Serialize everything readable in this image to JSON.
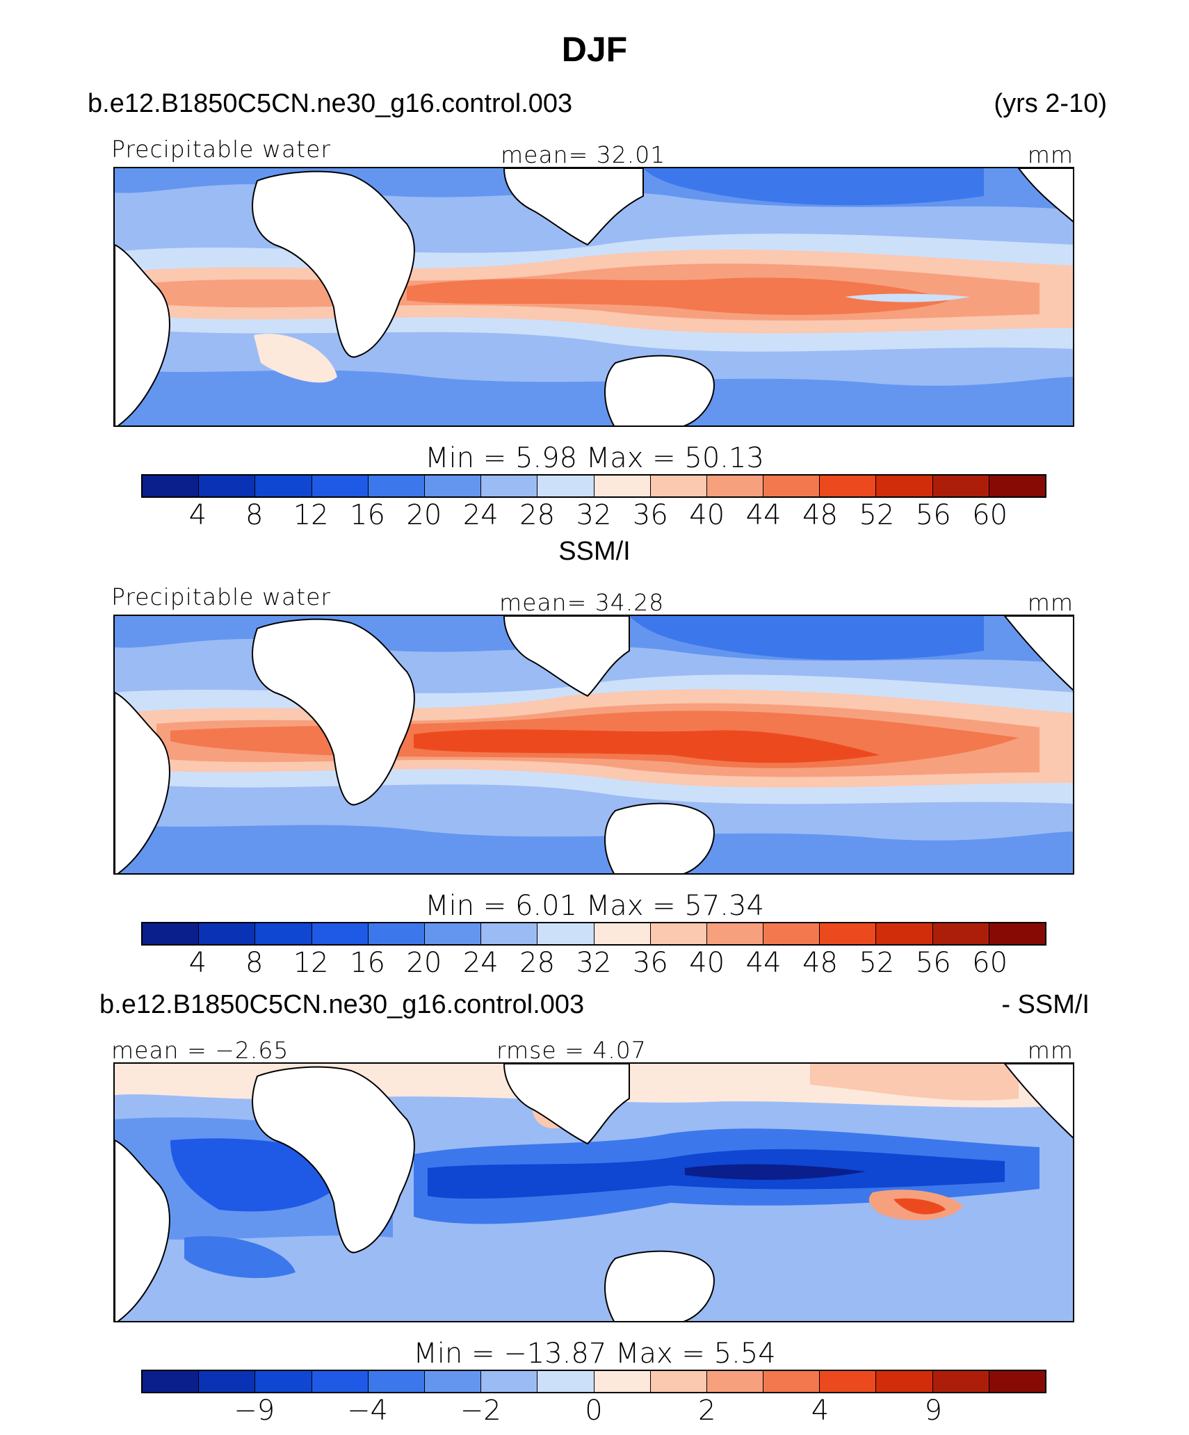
{
  "title": "DJF",
  "palette": [
    "#0a1e8c",
    "#0a32b4",
    "#0f46d2",
    "#1e5ae6",
    "#3c78eb",
    "#6496f0",
    "#9bbbf5",
    "#cde0fa",
    "#fde8dc",
    "#fbc8b0",
    "#f7a07e",
    "#f3784e",
    "#ec4a1e",
    "#d22d0a",
    "#ad1e0a",
    "#870a05"
  ],
  "panels": [
    {
      "header_left": "b.e12.B1850C5CN.ne30_g16.control.003",
      "header_right": "(yrs 2-10)",
      "label_left": "Precipitable water",
      "label_center": "mean=  32.01",
      "label_right": "mm",
      "minmax": "Min =    5.98  Max =   50.13",
      "tick_labels": [
        "4",
        "8",
        "12",
        "16",
        "20",
        "24",
        "28",
        "32",
        "36",
        "40",
        "44",
        "48",
        "52",
        "56",
        "60"
      ],
      "levels": [
        4,
        8,
        12,
        16,
        20,
        24,
        28,
        32,
        36,
        40,
        44,
        48,
        52,
        56,
        60
      ],
      "min": 5.98,
      "max": 50.13,
      "mean": 32.01,
      "units": "mm"
    },
    {
      "header_center": "SSM/I",
      "label_left": "Precipitable water",
      "label_center": "mean=  34.28",
      "label_right": "mm",
      "minmax": "Min =    6.01  Max =   57.34",
      "tick_labels": [
        "4",
        "8",
        "12",
        "16",
        "20",
        "24",
        "28",
        "32",
        "36",
        "40",
        "44",
        "48",
        "52",
        "56",
        "60"
      ],
      "levels": [
        4,
        8,
        12,
        16,
        20,
        24,
        28,
        32,
        36,
        40,
        44,
        48,
        52,
        56,
        60
      ],
      "min": 6.01,
      "max": 57.34,
      "mean": 34.28,
      "units": "mm"
    },
    {
      "header_left": "b.e12.B1850C5CN.ne30_g16.control.003",
      "header_right": "- SSM/I",
      "label_left": "mean =  −2.65",
      "label_center": "rmse =    4.07",
      "label_right": "mm",
      "minmax": "Min = −13.87  Max =    5.54",
      "tick_labels": [
        "−9",
        "−4",
        "−2",
        "0",
        "2",
        "4",
        "9"
      ],
      "tick_boundaries": [
        2,
        4,
        6,
        8,
        10,
        12,
        14
      ],
      "min": -13.87,
      "max": 5.54,
      "mean": -2.65,
      "rmse": 4.07,
      "units": "mm"
    }
  ],
  "chart_data": [
    {
      "type": "heatmap",
      "title": "DJF — b.e12.B1850C5CN.ne30_g16.control.003 (yrs 2-10)",
      "variable": "Precipitable water",
      "units": "mm",
      "mean": 32.01,
      "min": 5.98,
      "max": 50.13,
      "contour_levels": [
        4,
        8,
        12,
        16,
        20,
        24,
        28,
        32,
        36,
        40,
        44,
        48,
        52,
        56,
        60
      ]
    },
    {
      "type": "heatmap",
      "title": "SSM/I",
      "variable": "Precipitable water",
      "units": "mm",
      "mean": 34.28,
      "min": 6.01,
      "max": 57.34,
      "contour_levels": [
        4,
        8,
        12,
        16,
        20,
        24,
        28,
        32,
        36,
        40,
        44,
        48,
        52,
        56,
        60
      ]
    },
    {
      "type": "heatmap",
      "title": "b.e12.B1850C5CN.ne30_g16.control.003 - SSM/I",
      "units": "mm",
      "mean": -2.65,
      "rmse": 4.07,
      "min": -13.87,
      "max": 5.54,
      "colorbar_ticks": [
        "−9",
        "−4",
        "−2",
        "0",
        "2",
        "4",
        "9"
      ]
    }
  ]
}
